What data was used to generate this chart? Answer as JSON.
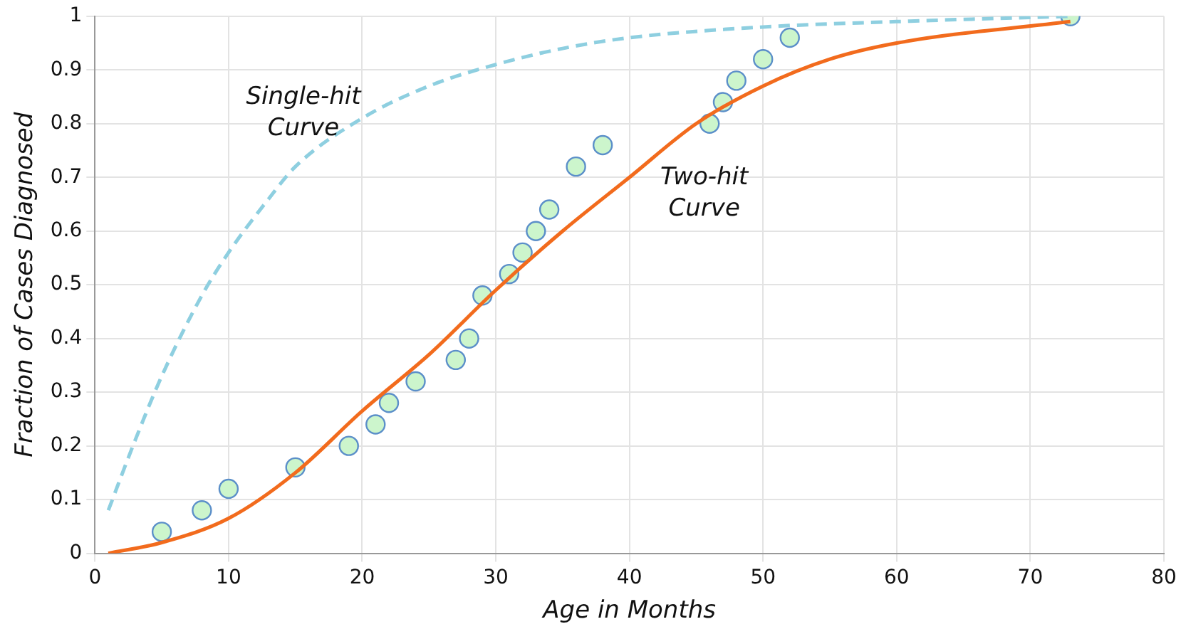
{
  "chart_data": {
    "type": "scatter",
    "xlabel": "Age in Months",
    "ylabel": "Fraction of Cases Diagnosed",
    "xlim": [
      0,
      80
    ],
    "xticks": [
      0,
      10,
      20,
      30,
      40,
      50,
      60,
      70,
      80
    ],
    "ylim": [
      0,
      1
    ],
    "yticks": [
      0,
      0.1,
      0.2,
      0.3,
      0.4,
      0.5,
      0.6,
      0.7,
      0.8,
      0.9,
      1
    ],
    "grid": true,
    "legend": false,
    "marker": "circle",
    "series": [
      {
        "type": "line",
        "color": "#8ecfe0",
        "line_style": "dashed",
        "marker": "none",
        "x": [
          1,
          3,
          5,
          8,
          10,
          13,
          15,
          20,
          25,
          30,
          35,
          40,
          50,
          60,
          73
        ],
        "values": [
          0.08,
          0.21,
          0.33,
          0.48,
          0.56,
          0.66,
          0.72,
          0.81,
          0.87,
          0.91,
          0.94,
          0.96,
          0.98,
          0.99,
          1.0
        ]
      },
      {
        "type": "line",
        "color": "#f26b1d",
        "line_style": "solid",
        "marker": "none",
        "x": [
          1,
          5,
          10,
          15,
          20,
          25,
          30,
          35,
          40,
          45,
          50,
          55,
          60,
          73
        ],
        "values": [
          0,
          0.02,
          0.065,
          0.15,
          0.265,
          0.37,
          0.49,
          0.6,
          0.7,
          0.8,
          0.87,
          0.92,
          0.95,
          0.99
        ]
      },
      {
        "color": "#ccf5cc",
        "x": [
          5,
          8,
          10,
          15,
          19,
          21,
          22,
          24,
          27,
          28,
          29,
          31,
          32,
          33,
          34,
          36,
          38,
          46,
          47,
          48,
          50,
          52,
          73
        ],
        "values": [
          0.04,
          0.08,
          0.12,
          0.16,
          0.2,
          0.24,
          0.28,
          0.32,
          0.36,
          0.4,
          0.48,
          0.52,
          0.56,
          0.6,
          0.64,
          0.72,
          0.76,
          0.8,
          0.84,
          0.88,
          0.92,
          0.96,
          1.0
        ]
      }
    ],
    "annotations": [
      "Single-hit Curve",
      "Two-hit Curve"
    ]
  }
}
